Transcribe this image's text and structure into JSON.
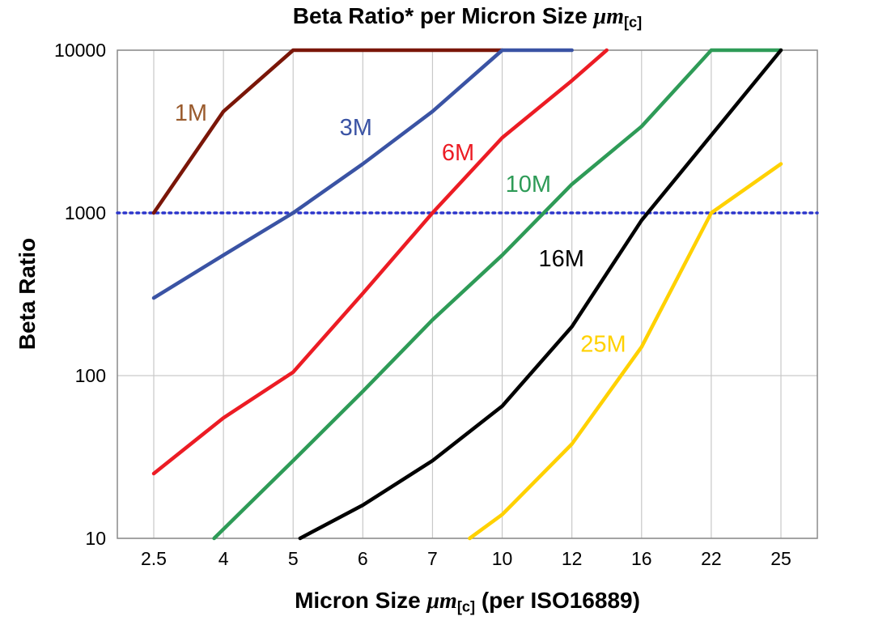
{
  "title": {
    "prefix": "Beta Ratio* per Micron Size ",
    "unit": "μm",
    "subscript": "[c]"
  },
  "y_axis": {
    "label": "Beta Ratio",
    "ticks": [
      10,
      100,
      1000,
      10000
    ]
  },
  "x_axis": {
    "prefix": "Micron Size ",
    "unit": "μm",
    "subscript": "[c]",
    "suffix": " (per ISO16889)"
  },
  "reference_line": {
    "value": 1000,
    "color": "#2b35cc",
    "style": "dotted"
  },
  "colors": {
    "gridline": "#c9c9c9",
    "plot_border": "#8a8a8a",
    "tick_text": "#000000"
  },
  "chart_data": {
    "type": "line",
    "title": "Beta Ratio* per Micron Size μm[c]",
    "xlabel": "Micron Size μm[c] (per ISO16889)",
    "ylabel": "Beta Ratio",
    "x_scale": "categorical",
    "y_scale": "log",
    "ylim": [
      10,
      10000
    ],
    "grid": true,
    "legend": "inline-labels",
    "categories": [
      2.5,
      4,
      5,
      6,
      7,
      10,
      12,
      16,
      22,
      25
    ],
    "series": [
      {
        "name": "1M",
        "color": "#7a1608",
        "label_color": "#9a5b2d",
        "label_at": [
          3.3,
          3700
        ],
        "points": [
          [
            2.5,
            1000
          ],
          [
            4,
            4200
          ],
          [
            5,
            10000
          ],
          [
            10,
            10000
          ]
        ]
      },
      {
        "name": "3M",
        "color": "#3a53a4",
        "label_color": "#3a53a4",
        "label_at": [
          5.9,
          3000
        ],
        "points": [
          [
            2.5,
            300
          ],
          [
            4,
            550
          ],
          [
            5,
            1000
          ],
          [
            6,
            2000
          ],
          [
            7,
            4200
          ],
          [
            10,
            10000
          ],
          [
            12,
            10000
          ]
        ]
      },
      {
        "name": "6M",
        "color": "#ec1c24",
        "label_color": "#ec1c24",
        "label_at": [
          8.1,
          2100
        ],
        "points": [
          [
            2.5,
            25
          ],
          [
            4,
            55
          ],
          [
            5,
            105
          ],
          [
            6,
            320
          ],
          [
            7,
            1000
          ],
          [
            10,
            2900
          ],
          [
            12,
            6500
          ],
          [
            14,
            10000
          ]
        ]
      },
      {
        "name": "10M",
        "color": "#2e9b57",
        "label_color": "#2e9b57",
        "label_at": [
          10.75,
          1350
        ],
        "points": [
          [
            3.8,
            10
          ],
          [
            5,
            30
          ],
          [
            6,
            80
          ],
          [
            7,
            220
          ],
          [
            10,
            550
          ],
          [
            12,
            1500
          ],
          [
            16,
            3400
          ],
          [
            22,
            10000
          ],
          [
            25,
            10000
          ]
        ]
      },
      {
        "name": "16M",
        "color": "#000000",
        "label_color": "#000000",
        "label_at": [
          11.7,
          470
        ],
        "points": [
          [
            5.1,
            10
          ],
          [
            6,
            16
          ],
          [
            7,
            30
          ],
          [
            10,
            65
          ],
          [
            12,
            200
          ],
          [
            16,
            900
          ],
          [
            22,
            3000
          ],
          [
            25,
            10000
          ]
        ]
      },
      {
        "name": "25M",
        "color": "#ffd100",
        "label_color": "#ffd100",
        "label_at": [
          13.8,
          140
        ],
        "points": [
          [
            8.6,
            10
          ],
          [
            10,
            14
          ],
          [
            12,
            38
          ],
          [
            16,
            150
          ],
          [
            22,
            1000
          ],
          [
            25,
            2000
          ]
        ]
      }
    ]
  }
}
